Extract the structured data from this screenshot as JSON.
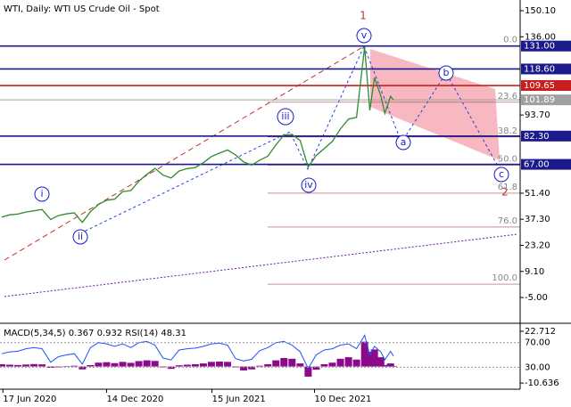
{
  "chart_data": [
    {
      "type": "line",
      "title": "WTI, Daily:  WTI US Crude Oil - Spot",
      "color": "#2e8b2e",
      "x": [
        "2020-06-15",
        "2020-06-29",
        "2020-07-13",
        "2020-07-27",
        "2020-08-10",
        "2020-08-24",
        "2020-09-08",
        "2020-09-21",
        "2020-10-05",
        "2020-10-19",
        "2020-11-02",
        "2020-11-16",
        "2020-11-30",
        "2020-12-14",
        "2020-12-28",
        "2021-01-11",
        "2021-01-25",
        "2021-02-08",
        "2021-02-22",
        "2021-03-08",
        "2021-03-22",
        "2021-04-05",
        "2021-04-19",
        "2021-05-03",
        "2021-05-17",
        "2021-05-31",
        "2021-06-14",
        "2021-06-28",
        "2021-07-12",
        "2021-07-26",
        "2021-08-09",
        "2021-08-23",
        "2021-09-06",
        "2021-09-20",
        "2021-10-04",
        "2021-10-18",
        "2021-11-01",
        "2021-11-15",
        "2021-11-29",
        "2021-12-13",
        "2021-12-27",
        "2022-01-10",
        "2022-01-24",
        "2022-02-07",
        "2022-02-21",
        "2022-03-07",
        "2022-03-16",
        "2022-03-24",
        "2022-04-04",
        "2022-04-11",
        "2022-04-21",
        "2022-04-26"
      ],
      "values": [
        38.5,
        39.7,
        40.1,
        41.2,
        41.9,
        42.6,
        37.2,
        39.3,
        40.2,
        40.8,
        35.6,
        41.4,
        45.3,
        47.6,
        48.2,
        52.3,
        52.8,
        57.9,
        61.6,
        64.8,
        61.2,
        59.6,
        63.4,
        64.7,
        65.3,
        67.9,
        71.2,
        73.1,
        74.8,
        72.1,
        68.3,
        66.6,
        69.3,
        71.4,
        77.6,
        82.9,
        83.2,
        79.9,
        65.6,
        71.8,
        75.6,
        79.4,
        86.2,
        91.5,
        92.4,
        130.5,
        96.2,
        113.9,
        104.1,
        94.6,
        103.8,
        101.89
      ],
      "xlim": [
        "2020-06-12",
        "2022-12-02"
      ],
      "xticks": [
        {
          "value": "2020-06-17",
          "label": "17 Jun 2020"
        },
        {
          "value": "2020-12-14",
          "label": "14 Dec 2020"
        },
        {
          "value": "2021-06-15",
          "label": "15 Jun 2021"
        },
        {
          "value": "2021-12-10",
          "label": "10 Dec 2021"
        }
      ],
      "ylim": [
        -15.1,
        155.9
      ],
      "yticks": [
        {
          "value": 150.1,
          "label": "150.10"
        },
        {
          "value": 136,
          "label": "136.00"
        },
        {
          "value": 93.7,
          "label": "93.70"
        },
        {
          "value": 51.4,
          "label": "51.40"
        },
        {
          "value": 37.3,
          "label": "37.30"
        },
        {
          "value": 23.2,
          "label": "23.20"
        },
        {
          "value": 9.1,
          "label": "9.10"
        },
        {
          "value": -5,
          "label": "-5.00"
        }
      ],
      "levels": [
        {
          "value": 131,
          "label": "131.00",
          "color": "#1a1a8c"
        },
        {
          "value": 118.6,
          "label": "118.60",
          "color": "#1a1a8c"
        },
        {
          "value": 109.65,
          "label": "109.65",
          "color": "#c81e1e"
        },
        {
          "value": 101.89,
          "label": "101.89",
          "color": "#a0a0a0"
        },
        {
          "value": 82.3,
          "label": "82.30",
          "color": "#1a1a8c"
        },
        {
          "value": 67,
          "label": "67.00",
          "color": "#1a1a8c"
        }
      ],
      "fib_levels": [
        {
          "value": 131,
          "label": "0.0"
        },
        {
          "value": 100.6,
          "label": "23.6"
        },
        {
          "value": 81.8,
          "label": "38.2"
        },
        {
          "value": 66.6,
          "label": "50.0"
        },
        {
          "value": 51.4,
          "label": "61.8"
        },
        {
          "value": 33.1,
          "label": "76.0"
        },
        {
          "value": 2.2,
          "label": "100.0"
        }
      ],
      "wave_labels": [
        "i",
        "ii",
        "iii",
        "iv",
        "v",
        "a",
        "b",
        "c",
        "1",
        "2"
      ]
    },
    {
      "type": "indicator",
      "label": "MACD(5,34,5) 0.367 0.932 RSI(14) 48.31",
      "x": [
        "2020-06-15",
        "2020-06-29",
        "2020-07-13",
        "2020-07-27",
        "2020-08-10",
        "2020-08-24",
        "2020-09-08",
        "2020-09-21",
        "2020-10-05",
        "2020-10-19",
        "2020-11-02",
        "2020-11-16",
        "2020-11-30",
        "2020-12-14",
        "2020-12-28",
        "2021-01-11",
        "2021-01-25",
        "2021-02-08",
        "2021-02-22",
        "2021-03-08",
        "2021-03-22",
        "2021-04-05",
        "2021-04-19",
        "2021-05-03",
        "2021-05-17",
        "2021-05-31",
        "2021-06-14",
        "2021-06-28",
        "2021-07-12",
        "2021-07-26",
        "2021-08-09",
        "2021-08-23",
        "2021-09-06",
        "2021-09-20",
        "2021-10-04",
        "2021-10-18",
        "2021-11-01",
        "2021-11-15",
        "2021-11-29",
        "2021-12-13",
        "2021-12-27",
        "2022-01-10",
        "2022-01-24",
        "2022-02-07",
        "2022-02-21",
        "2022-03-07",
        "2022-03-16",
        "2022-03-24",
        "2022-04-04",
        "2022-04-11",
        "2022-04-21",
        "2022-04-26"
      ],
      "macd": {
        "color": "#8b0a8b",
        "ylim": [
          -14,
          26.7
        ],
        "yticks": [
          22.712,
          -10.636
        ],
        "values": [
          1.5,
          1.2,
          1.0,
          1.3,
          1.6,
          1.4,
          -0.8,
          -0.5,
          0.3,
          0.5,
          -1.8,
          0.9,
          2.5,
          2.8,
          2.2,
          3.0,
          2.4,
          3.5,
          4.0,
          3.6,
          -0.5,
          -1.5,
          0.8,
          1.2,
          1.5,
          2.0,
          3.0,
          3.2,
          3.0,
          -0.5,
          -2.5,
          -1.8,
          0.5,
          1.5,
          4.0,
          5.5,
          5.0,
          2.0,
          -6.5,
          -2.0,
          1.5,
          2.5,
          5.0,
          6.0,
          4.5,
          16.0,
          9.5,
          11.0,
          6.0,
          1.0,
          2.0,
          0.367
        ]
      },
      "rsi": {
        "color": "#1e50ff",
        "ylim": [
          -4.3,
          98.6
        ],
        "yticks": [
          {
            "value": 70,
            "label": "70.00"
          },
          {
            "value": 30,
            "label": "30.00"
          }
        ],
        "values": [
          52,
          55,
          56,
          60,
          62,
          60,
          38,
          47,
          50,
          52,
          35,
          62,
          70,
          68,
          64,
          68,
          62,
          70,
          72,
          66,
          45,
          42,
          58,
          60,
          61,
          64,
          68,
          69,
          66,
          44,
          40,
          43,
          57,
          62,
          70,
          72,
          66,
          55,
          28,
          50,
          58,
          60,
          66,
          68,
          60,
          82,
          50,
          64,
          55,
          42,
          56,
          48.31
        ]
      }
    }
  ]
}
